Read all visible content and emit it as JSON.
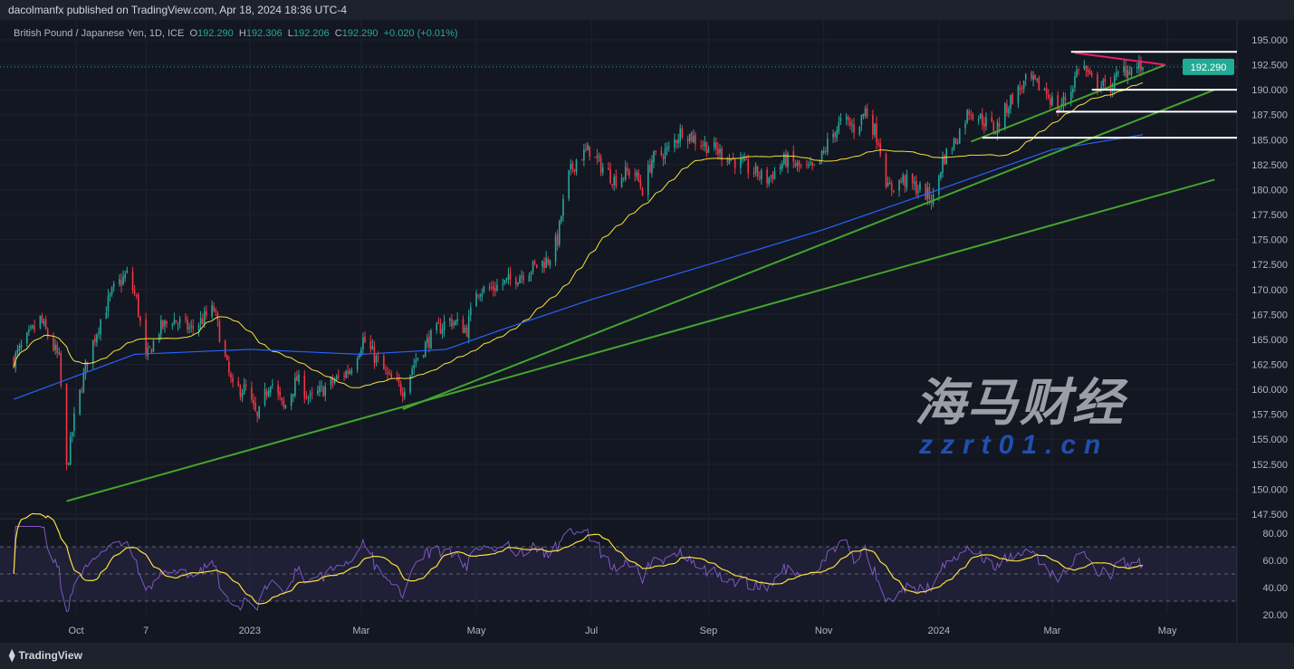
{
  "header": {
    "published": "dacolmanfx published on TradingView.com, Apr 18, 2024 18:36 UTC-4"
  },
  "legend": {
    "symbol": "British Pound / Japanese Yen, 1D, ICE",
    "o_label": "O",
    "o": "192.290",
    "h_label": "H",
    "h": "192.306",
    "l_label": "L",
    "l": "192.206",
    "c_label": "C",
    "c": "192.290",
    "change": "+0.020 (+0.01%)"
  },
  "footer": {
    "brand": "TradingView"
  },
  "watermark": {
    "cn": "海马财经",
    "url": "zzrt01.cn"
  },
  "colors": {
    "background": "#131722",
    "up": "#26a69a",
    "down": "#f23645",
    "ma50": "#f7e13b",
    "ma200": "#2962ff",
    "trendline": "#43a52f",
    "resistance": "#e91e63",
    "level": "#ffffff",
    "rsi": "#7e57c2",
    "rsi_ma": "#f7e13b"
  },
  "chart_data": {
    "type": "candlestick",
    "ylim": [
      146.5,
      196
    ],
    "price_ticks": [
      "195.000",
      "192.500",
      "190.000",
      "187.500",
      "185.000",
      "182.500",
      "180.000",
      "177.500",
      "175.000",
      "172.500",
      "170.000",
      "167.500",
      "165.000",
      "162.500",
      "160.000",
      "157.500",
      "155.000",
      "152.500",
      "150.000",
      "147.500"
    ],
    "last_price": "192.290",
    "time_ticks": [
      {
        "label": "Oct",
        "date": "2022-10-01"
      },
      {
        "label": "7",
        "date": "2022-11-07"
      },
      {
        "label": "2023",
        "date": "2023-01-01"
      },
      {
        "label": "Mar",
        "date": "2023-03-01"
      },
      {
        "label": "May",
        "date": "2023-05-01"
      },
      {
        "label": "Jul",
        "date": "2023-07-01"
      },
      {
        "label": "Sep",
        "date": "2023-09-01"
      },
      {
        "label": "Nov",
        "date": "2023-11-01"
      },
      {
        "label": "2024",
        "date": "2024-01-01"
      },
      {
        "label": "Mar",
        "date": "2024-03-01"
      },
      {
        "label": "May",
        "date": "2024-05-01"
      }
    ],
    "close_path": [
      [
        "2022-08-29",
        163
      ],
      [
        "2022-09-12",
        167
      ],
      [
        "2022-09-22",
        163
      ],
      [
        "2022-09-26",
        152
      ],
      [
        "2022-09-30",
        157
      ],
      [
        "2022-10-07",
        163
      ],
      [
        "2022-10-14",
        167
      ],
      [
        "2022-10-21",
        170
      ],
      [
        "2022-10-28",
        171.5
      ],
      [
        "2022-11-02",
        169
      ],
      [
        "2022-11-07",
        163
      ],
      [
        "2022-11-14",
        166
      ],
      [
        "2022-11-21",
        167
      ],
      [
        "2022-12-01",
        166
      ],
      [
        "2022-12-13",
        168
      ],
      [
        "2022-12-19",
        163
      ],
      [
        "2022-12-23",
        160
      ],
      [
        "2022-12-30",
        160
      ],
      [
        "2023-01-05",
        157
      ],
      [
        "2023-01-12",
        161
      ],
      [
        "2023-01-19",
        158
      ],
      [
        "2023-01-26",
        161
      ],
      [
        "2023-02-02",
        159
      ],
      [
        "2023-02-09",
        160
      ],
      [
        "2023-02-16",
        161
      ],
      [
        "2023-02-23",
        162
      ],
      [
        "2023-03-02",
        165
      ],
      [
        "2023-03-09",
        163
      ],
      [
        "2023-03-16",
        161
      ],
      [
        "2023-03-23",
        160
      ],
      [
        "2023-03-30",
        163
      ],
      [
        "2023-04-06",
        165
      ],
      [
        "2023-04-16",
        167
      ],
      [
        "2023-04-26",
        166
      ],
      [
        "2023-05-01",
        170
      ],
      [
        "2023-05-08",
        170
      ],
      [
        "2023-05-20",
        171
      ],
      [
        "2023-05-29",
        172
      ],
      [
        "2023-06-08",
        173
      ],
      [
        "2023-06-13",
        175
      ],
      [
        "2023-06-18",
        181
      ],
      [
        "2023-06-23",
        183
      ],
      [
        "2023-06-30",
        184
      ],
      [
        "2023-07-03",
        183
      ],
      [
        "2023-07-13",
        181
      ],
      [
        "2023-07-23",
        182
      ],
      [
        "2023-07-28",
        180
      ],
      [
        "2023-08-02",
        183
      ],
      [
        "2023-08-11",
        184
      ],
      [
        "2023-08-18",
        186
      ],
      [
        "2023-08-25",
        185
      ],
      [
        "2023-09-04",
        184
      ],
      [
        "2023-09-14",
        183
      ],
      [
        "2023-09-23",
        182
      ],
      [
        "2023-10-02",
        181
      ],
      [
        "2023-10-12",
        183
      ],
      [
        "2023-10-21",
        182
      ],
      [
        "2023-10-28",
        182
      ],
      [
        "2023-11-04",
        185
      ],
      [
        "2023-11-11",
        187
      ],
      [
        "2023-11-18",
        186
      ],
      [
        "2023-11-23",
        188
      ],
      [
        "2023-11-30",
        185
      ],
      [
        "2023-12-05",
        180
      ],
      [
        "2023-12-13",
        181
      ],
      [
        "2023-12-22",
        180
      ],
      [
        "2023-12-29",
        179
      ],
      [
        "2024-01-03",
        183
      ],
      [
        "2024-01-10",
        185
      ],
      [
        "2024-01-17",
        188
      ],
      [
        "2024-01-24",
        187
      ],
      [
        "2024-01-31",
        186
      ],
      [
        "2024-02-08",
        189
      ],
      [
        "2024-02-17",
        191
      ],
      [
        "2024-02-26",
        190
      ],
      [
        "2024-03-04",
        188
      ],
      [
        "2024-03-11",
        190
      ],
      [
        "2024-03-16",
        193
      ],
      [
        "2024-03-21",
        191
      ],
      [
        "2024-03-31",
        190
      ],
      [
        "2024-04-07",
        192
      ],
      [
        "2024-04-18",
        192.29
      ]
    ],
    "ma200_path": [
      [
        "2022-08-29",
        159
      ],
      [
        "2022-11-01",
        163.5
      ],
      [
        "2023-01-01",
        164
      ],
      [
        "2023-03-01",
        163.5
      ],
      [
        "2023-04-15",
        164
      ],
      [
        "2023-05-15",
        166
      ],
      [
        "2023-07-01",
        169
      ],
      [
        "2023-09-01",
        172.5
      ],
      [
        "2023-11-01",
        176
      ],
      [
        "2024-01-01",
        180
      ],
      [
        "2024-03-01",
        184
      ],
      [
        "2024-04-18",
        185.5
      ]
    ],
    "trendlines": [
      {
        "kind": "support",
        "from": [
          "2022-09-26",
          148.8
        ],
        "to": [
          "2024-05-26",
          181
        ]
      },
      {
        "kind": "support",
        "from": [
          "2023-03-23",
          158
        ],
        "to": [
          "2024-05-26",
          190
        ]
      },
      {
        "kind": "support",
        "from": [
          "2024-01-18",
          184.8
        ],
        "to": [
          "2024-04-30",
          192.5
        ]
      },
      {
        "kind": "resistance",
        "from": [
          "2024-03-13",
          193.7
        ],
        "to": [
          "2024-04-30",
          192.5
        ]
      }
    ],
    "levels": [
      {
        "price": 193.8,
        "from": "2024-03-11"
      },
      {
        "price": 190.0,
        "from": "2024-03-22"
      },
      {
        "price": 187.8,
        "from": "2024-03-03"
      },
      {
        "price": 185.2,
        "from": "2024-01-24"
      }
    ],
    "rsi": {
      "ylim": [
        15,
        85
      ],
      "ticks": [
        "80.00",
        "60.00",
        "40.00",
        "20.00"
      ],
      "band": [
        30,
        70
      ],
      "mid": 50,
      "length": 14,
      "ma_length": 14
    }
  }
}
